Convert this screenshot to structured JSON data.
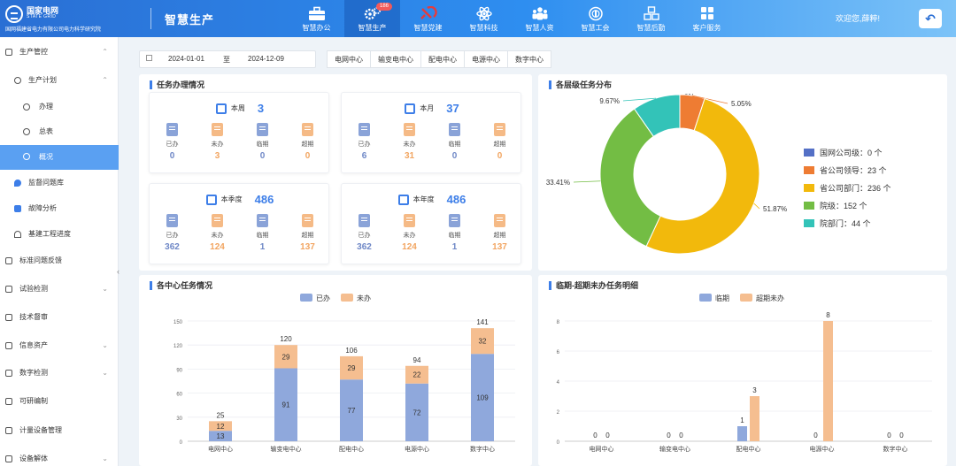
{
  "header": {
    "logo_cn": "国家电网",
    "logo_en": "STATE GRID",
    "org": "国网福建省电力有限公司电力科学研究院",
    "app_title": "智慧生产",
    "welcome": "欢迎您,薛粹!",
    "nav": [
      {
        "label": "智慧办公",
        "icon": "briefcase-icon"
      },
      {
        "label": "智慧生产",
        "icon": "gears-icon",
        "badge": "186",
        "active": true
      },
      {
        "label": "智慧党建",
        "icon": "party-emblem-icon"
      },
      {
        "label": "智慧科技",
        "icon": "atom-icon"
      },
      {
        "label": "智慧人资",
        "icon": "people-icon"
      },
      {
        "label": "智慧工会",
        "icon": "union-emblem-icon"
      },
      {
        "label": "智慧后勤",
        "icon": "boxes-icon"
      },
      {
        "label": "客户服务",
        "icon": "grid-apps-icon"
      }
    ]
  },
  "sidebar": {
    "items": [
      {
        "label": "生产管控",
        "chevron": "⌃"
      },
      {
        "label": "生产计划",
        "chevron": "⌃"
      },
      {
        "label": "办理",
        "chevron": ""
      },
      {
        "label": "总表",
        "chevron": ""
      },
      {
        "label": "概况",
        "chevron": "",
        "active": true
      },
      {
        "label": "监督问题库",
        "chevron": ""
      },
      {
        "label": "故障分析",
        "chevron": ""
      },
      {
        "label": "基建工程进度",
        "chevron": ""
      },
      {
        "label": "标准问题反馈",
        "chevron": ""
      },
      {
        "label": "试验检测",
        "chevron": "⌄"
      },
      {
        "label": "技术督审",
        "chevron": ""
      },
      {
        "label": "信息资产",
        "chevron": "⌄"
      },
      {
        "label": "数字检测",
        "chevron": "⌄"
      },
      {
        "label": "可研编制",
        "chevron": ""
      },
      {
        "label": "计量设备管理",
        "chevron": ""
      },
      {
        "label": "设备解体",
        "chevron": "⌄"
      }
    ],
    "collapse": "‹"
  },
  "filters": {
    "start_date": "2024-01-01",
    "to": "至",
    "end_date": "2024-12-09",
    "tabs": [
      "电网中心",
      "输变电中心",
      "配电中心",
      "电源中心",
      "数字中心"
    ]
  },
  "task_panel": {
    "title": "任务办理情况",
    "stat_labels": [
      "已办",
      "未办",
      "临期",
      "超期"
    ],
    "cards": [
      {
        "label": "本周",
        "total": "3",
        "values": [
          "0",
          "3",
          "0",
          "0"
        ]
      },
      {
        "label": "本月",
        "total": "37",
        "values": [
          "6",
          "31",
          "0",
          "0"
        ]
      },
      {
        "label": "本季度",
        "total": "486",
        "values": [
          "362",
          "124",
          "1",
          "137"
        ]
      },
      {
        "label": "本年度",
        "total": "486",
        "values": [
          "362",
          "124",
          "1",
          "137"
        ]
      }
    ]
  },
  "pie_panel": {
    "title": "各层级任务分布"
  },
  "bar_panel": {
    "title": "各中心任务情况"
  },
  "due_panel": {
    "title": "临期-超期未办任务明细"
  },
  "chart_data": [
    {
      "type": "pie",
      "donut": true,
      "labels": [
        "国网公司级",
        "省公司领导",
        "省公司部门",
        "院级",
        "院部门"
      ],
      "values": [
        0,
        23,
        236,
        152,
        44
      ],
      "legend_text": [
        "国网公司级：0 个",
        "省公司领导：23 个",
        "省公司部门：236 个",
        "院级：152 个",
        "院部门：44 个"
      ],
      "percent_labels": [
        "0%",
        "5.05%",
        "51.87%",
        "33.41%",
        "9.67%"
      ],
      "colors": [
        "#5470c6",
        "#ee7c33",
        "#f2b90c",
        "#73bd44",
        "#33c3b8"
      ],
      "legend": "right"
    },
    {
      "type": "bar",
      "stacked": true,
      "categories": [
        "电网中心",
        "输变电中心",
        "配电中心",
        "电源中心",
        "数字中心"
      ],
      "series": [
        {
          "name": "已办",
          "values": [
            13,
            91,
            77,
            72,
            109
          ],
          "color": "#8fa8dc"
        },
        {
          "name": "未办",
          "values": [
            12,
            29,
            29,
            22,
            32
          ],
          "color": "#f5be90"
        }
      ],
      "totals": [
        25,
        120,
        106,
        94,
        141
      ],
      "ylim": [
        0,
        150
      ],
      "yticks": [
        "0",
        "30",
        "60",
        "90",
        "120",
        "150"
      ],
      "legend": "top"
    },
    {
      "type": "bar",
      "stacked": false,
      "categories": [
        "电网中心",
        "输变电中心",
        "配电中心",
        "电源中心",
        "数字中心"
      ],
      "series": [
        {
          "name": "临期",
          "values": [
            0,
            0,
            1,
            0,
            0
          ],
          "color": "#8fa8dc"
        },
        {
          "name": "超期未办",
          "values": [
            0,
            0,
            3,
            8,
            0
          ],
          "color": "#f5be90"
        }
      ],
      "ylim": [
        0,
        8
      ],
      "yticks": [
        "0",
        "2",
        "4",
        "6",
        "8"
      ],
      "legend": "top"
    }
  ]
}
